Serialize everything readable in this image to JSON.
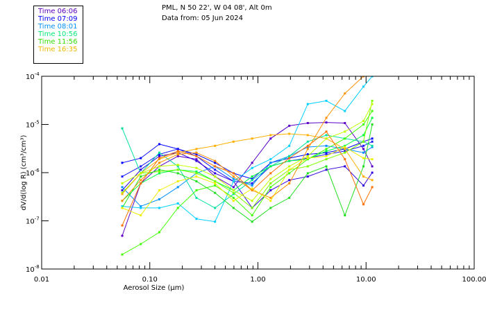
{
  "chart_data": {
    "type": "line",
    "title": "PML, N 50 22', W 04 08', Alt 0m",
    "subtitle": "Data from: 05 Jun 2024",
    "xlabel": "Aerosol Size (μm)",
    "ylabel": "dV/d(log R) (cm³/cm³)",
    "xscale": "log",
    "yscale": "log",
    "xlim": [
      0.01,
      100
    ],
    "ylim": [
      1e-08,
      0.0001
    ],
    "xticks": [
      {
        "value": 0.01,
        "label": "0.01"
      },
      {
        "value": 0.1,
        "label": "0.10"
      },
      {
        "value": 1,
        "label": "1.00"
      },
      {
        "value": 10,
        "label": "10.00"
      },
      {
        "value": 100,
        "label": "100.00"
      }
    ],
    "yticks": [
      {
        "value": 0.0001,
        "base": "10",
        "exp": "-4"
      },
      {
        "value": 1e-05,
        "base": "10",
        "exp": "-5"
      },
      {
        "value": 1e-06,
        "base": "10",
        "exp": "-6"
      },
      {
        "value": 1e-07,
        "base": "10",
        "exp": "-7"
      },
      {
        "value": 1e-08,
        "base": "10",
        "exp": "-8"
      }
    ],
    "legend_position": "top-left",
    "legend": [
      {
        "label": "Time 06:06",
        "color": "#6000c0"
      },
      {
        "label": "Time 07:09",
        "color": "#0000ff"
      },
      {
        "label": "Time 08:01",
        "color": "#0090ff"
      },
      {
        "label": "Time 10:56",
        "color": "#00e878"
      },
      {
        "label": "Time 11:56",
        "color": "#30e000"
      },
      {
        "label": "Time 16:35",
        "color": "#f0b800"
      }
    ],
    "x": [
      0.0556,
      0.0825,
      0.1225,
      0.182,
      0.27,
      0.401,
      0.595,
      0.884,
      1.31,
      1.95,
      2.89,
      4.29,
      6.37,
      9.46,
      11.4
    ],
    "series": [
      {
        "color": "#5a00c8",
        "values": [
          4.9e-08,
          6e-07,
          1.35e-06,
          2.2e-06,
          1.9e-06,
          8.3e-07,
          5e-07,
          1.6e-06,
          5.1e-06,
          9.4e-06,
          1.07e-05,
          1.1e-05,
          1.07e-05,
          3.1e-06,
          1.35e-06
        ]
      },
      {
        "color": "#0000ff",
        "values": [
          1.6e-06,
          2e-06,
          3.9e-06,
          3.1e-06,
          2.4e-06,
          1.6e-06,
          9.7e-07,
          7.4e-07,
          1.6e-06,
          2e-06,
          2.4e-06,
          2.6e-06,
          3.1e-06,
          4.4e-06,
          5.1e-06
        ]
      },
      {
        "color": "#1a1aff",
        "values": [
          8.3e-07,
          1.35e-06,
          2.4e-06,
          3.1e-06,
          2.2e-06,
          1.15e-06,
          6.6e-07,
          6e-07,
          1.35e-06,
          1.75e-06,
          2e-06,
          2.4e-06,
          2.8e-06,
          3.6e-06,
          4.4e-06
        ]
      },
      {
        "color": "#3000e0",
        "values": [
          4.3e-07,
          1.15e-06,
          2.2e-06,
          2.6e-06,
          1.75e-06,
          9.7e-07,
          6.6e-07,
          1.85e-07,
          4.3e-07,
          7e-07,
          8.3e-07,
          1.15e-06,
          1.35e-06,
          5.4e-07,
          1e-06
        ]
      },
      {
        "color": "#0090ff",
        "values": [
          5e-07,
          2e-07,
          2.8e-07,
          5e-07,
          9.7e-07,
          1.35e-06,
          7.4e-07,
          5.4e-07,
          1.6e-06,
          2.2e-06,
          3.4e-06,
          3.6e-06,
          3.1e-06,
          2.6e-06,
          3.4e-06
        ]
      },
      {
        "color": "#00d0ff",
        "values": [
          2e-07,
          1.85e-07,
          1.85e-07,
          2.3e-07,
          1.1e-07,
          9.6e-08,
          6.6e-07,
          1.25e-06,
          1.9e-06,
          3.6e-06,
          2.65e-05,
          3.1e-05,
          1.9e-05,
          6.1e-05,
          0.0001
        ]
      },
      {
        "color": "#00e0a0",
        "values": [
          8.3e-06,
          9.7e-07,
          2.6e-06,
          1.35e-06,
          3e-07,
          1.85e-07,
          3.6e-07,
          7e-07,
          1.35e-06,
          2.2e-06,
          4.4e-06,
          6e-06,
          5.1e-06,
          4.4e-06,
          3.6e-06
        ]
      },
      {
        "color": "#00ff40",
        "values": [
          2.6e-07,
          6e-07,
          9.7e-07,
          1.15e-06,
          1.05e-06,
          6.6e-07,
          4.3e-07,
          8.3e-07,
          1.35e-06,
          1.75e-06,
          1.9e-06,
          2.8e-06,
          3.6e-06,
          6e-06,
          1.37e-05
        ]
      },
      {
        "color": "#40ff00",
        "values": [
          2e-08,
          3.3e-08,
          5.8e-08,
          1.85e-07,
          4.3e-07,
          5.4e-07,
          3e-07,
          1.3e-07,
          5e-07,
          9.7e-07,
          1.9e-06,
          3.1e-06,
          5.1e-06,
          1e-05,
          1.9e-05
        ]
      },
      {
        "color": "#80ff00",
        "values": [
          3.8e-07,
          9.7e-07,
          1.05e-06,
          1.15e-06,
          9.7e-07,
          6.6e-07,
          3.8e-07,
          1.85e-07,
          6e-07,
          1.15e-06,
          1.35e-06,
          1.9e-06,
          2.6e-06,
          4.4e-06,
          3.1e-05
        ]
      },
      {
        "color": "#20e020",
        "values": [
          1.85e-07,
          8.3e-07,
          1.15e-06,
          9.7e-07,
          6.6e-07,
          3.8e-07,
          1.85e-07,
          9.6e-08,
          1.85e-07,
          3e-07,
          9.7e-07,
          1.35e-06,
          1.3e-07,
          1.35e-06,
          1e-05
        ]
      },
      {
        "color": "#f0f000",
        "values": [
          1.85e-07,
          1.3e-07,
          4.3e-07,
          6.6e-07,
          8.3e-07,
          6e-07,
          2.6e-07,
          4.7e-07,
          2.6e-07,
          1.15e-06,
          2e-06,
          2.2e-06,
          3.4e-06,
          2e-06,
          1.9e-06
        ]
      },
      {
        "color": "#ffb000",
        "values": [
          3.6e-07,
          9.7e-07,
          1.9e-06,
          2.6e-06,
          3.1e-06,
          3.6e-06,
          4.4e-06,
          5.1e-06,
          6e-06,
          6.4e-06,
          6e-06,
          5.1e-06,
          3.1e-06,
          8.3e-07,
          7e-07
        ]
      },
      {
        "color": "#ff7000",
        "values": [
          8e-08,
          6e-07,
          2e-06,
          2.8e-06,
          2.2e-06,
          1.35e-06,
          9.7e-07,
          4.3e-07,
          9.7e-07,
          2e-06,
          3.6e-06,
          7.1e-06,
          1.9e-06,
          2.2e-07,
          5e-07
        ]
      },
      {
        "color": "#ff9000",
        "values": [
          2.6e-07,
          7e-07,
          1.6e-06,
          2.4e-06,
          2.6e-06,
          1.75e-06,
          8.3e-07,
          4.3e-07,
          3e-07,
          6e-07,
          3.1e-06,
          1.37e-05,
          4.4e-05,
          0.0001,
          null
        ]
      },
      {
        "color": "#c0ff00",
        "values": [
          6e-07,
          9.7e-07,
          1.35e-06,
          1.45e-06,
          1.25e-06,
          8.3e-07,
          4.3e-07,
          2.6e-07,
          7.4e-07,
          1.35e-06,
          2.2e-06,
          5.1e-06,
          7.1e-06,
          1.18e-05,
          2.65e-05
        ]
      }
    ]
  }
}
